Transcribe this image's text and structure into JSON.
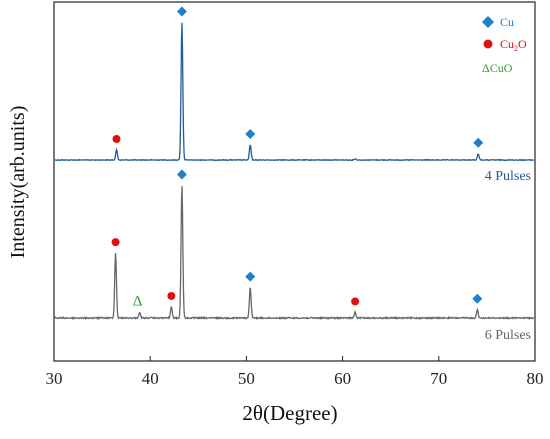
{
  "chart_data": {
    "type": "line",
    "xlabel": "2θ(Degree)",
    "ylabel": "Intensity(arb.units)",
    "xlim": [
      30,
      80
    ],
    "x_ticks": [
      "30",
      "40",
      "50",
      "60",
      "70",
      "80"
    ],
    "grid": false,
    "legend_position": "top-right",
    "legend": [
      {
        "symbol": "diamond",
        "text": "Cu",
        "color": "#1f7fc9"
      },
      {
        "symbol": "circle",
        "text": "Cu2O",
        "base": "Cu",
        "sub": "2",
        "tail": "O",
        "color": "#e01010"
      },
      {
        "symbol": "delta",
        "text": "ΔCuO",
        "color": "#2e9e2e"
      }
    ],
    "series": [
      {
        "name": "4 Pulses",
        "label": "4 Pulses",
        "color": "#1f5a9a",
        "baseline": 0.0,
        "peaks": [
          {
            "x": 36.5,
            "height": 0.08,
            "phase": "Cu2O"
          },
          {
            "x": 43.3,
            "height": 1.1,
            "phase": "Cu"
          },
          {
            "x": 50.4,
            "height": 0.12,
            "phase": "Cu"
          },
          {
            "x": 61.3,
            "height": 0.01,
            "phase": ""
          },
          {
            "x": 74.1,
            "height": 0.05,
            "phase": "Cu"
          }
        ]
      },
      {
        "name": "6 Pulses",
        "label": "6 Pulses",
        "color": "#666666",
        "baseline": 0.0,
        "peaks": [
          {
            "x": 36.4,
            "height": 0.47,
            "phase": "Cu2O"
          },
          {
            "x": 38.9,
            "height": 0.04,
            "phase": "CuO"
          },
          {
            "x": 42.2,
            "height": 0.08,
            "phase": "Cu2O"
          },
          {
            "x": 43.3,
            "height": 0.96,
            "phase": "Cu"
          },
          {
            "x": 50.4,
            "height": 0.22,
            "phase": "Cu"
          },
          {
            "x": 61.3,
            "height": 0.04,
            "phase": "Cu2O"
          },
          {
            "x": 74.0,
            "height": 0.06,
            "phase": "Cu"
          }
        ]
      }
    ]
  }
}
